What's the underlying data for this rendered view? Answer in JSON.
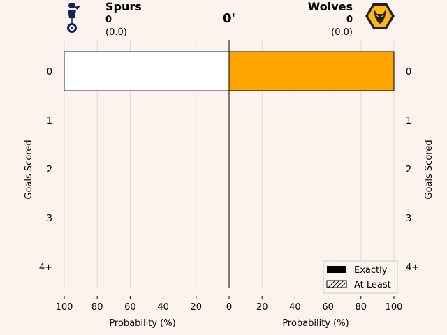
{
  "header": {
    "home": {
      "name": "Spurs",
      "score": "0",
      "xg": "(0.0)"
    },
    "away": {
      "name": "Wolves",
      "score": "0",
      "xg": "(0.0)"
    },
    "minute": "0'"
  },
  "colors": {
    "background": "#fdf3ee",
    "home_fill": "#ffffff",
    "home_edge": "#132257",
    "away_fill": "#FDB913",
    "away_edge": "#231F20",
    "away_bar": "#ffa500"
  },
  "chart_data": {
    "type": "bar",
    "orientation": "horizontal",
    "categories": [
      "0",
      "1",
      "2",
      "3",
      "4+"
    ],
    "series": [
      {
        "name": "Spurs",
        "values": [
          100,
          0,
          0,
          0,
          0
        ]
      },
      {
        "name": "Wolves",
        "values": [
          100,
          0,
          0,
          0,
          0
        ]
      }
    ],
    "xlabel": "Probability (%)",
    "ylabel": "Goals Scored",
    "xlim": [
      0,
      100
    ],
    "xticks": [
      100,
      80,
      60,
      40,
      20,
      0
    ],
    "grid": "vertical",
    "legend": {
      "position": "bottom-right",
      "entries": [
        "Exactly",
        "At Least"
      ]
    }
  }
}
